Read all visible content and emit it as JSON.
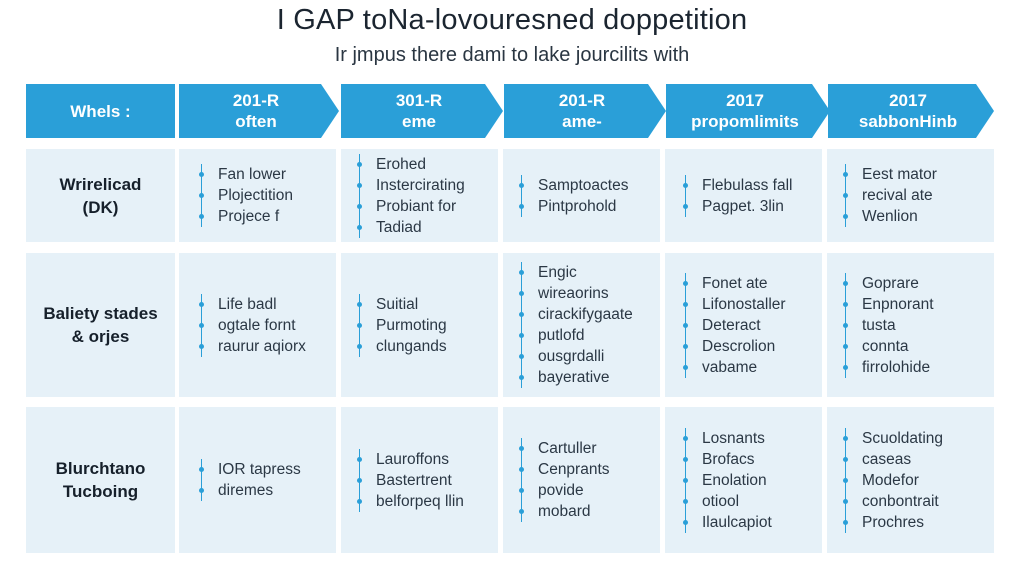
{
  "title": "I GAP toNa-lovouresned doppetition",
  "subtitle": "Ir jmpus there dami to lake jourcilits with",
  "colors": {
    "header": "#2a9fd8",
    "cell": "#e6f1f8",
    "accent": "#2a9fd8"
  },
  "header": {
    "first": "Whels :",
    "columns": [
      {
        "line1": "201-R",
        "line2": "often"
      },
      {
        "line1": "301-R",
        "line2": "eme"
      },
      {
        "line1": "201-R",
        "line2": "ame-"
      },
      {
        "line1": "2017",
        "line2": "propomlimits"
      },
      {
        "line1": "2017",
        "line2": "sabbonHinb"
      }
    ]
  },
  "rows": [
    {
      "label": [
        "Wrirelicad",
        "(DK)"
      ],
      "cells": [
        [
          "Fan lower",
          "Plojectition",
          "Projece f"
        ],
        [
          "Erohed",
          "Instercirating",
          "Probiant for",
          "Tadiad"
        ],
        [
          "Samptoactes",
          "Pintprohold"
        ],
        [
          "Flebulass fall",
          "Pagpet. 3lin"
        ],
        [
          "Eest mator",
          "recival ate",
          "Wenlion"
        ]
      ]
    },
    {
      "label": [
        "Baliety stades",
        "& orjes"
      ],
      "cells": [
        [
          "Life badl",
          "ogtale fornt",
          "raurur aqiorx"
        ],
        [
          "Suitial",
          "Purmoting",
          "clungands"
        ],
        [
          "Engic",
          "wireaorins",
          "cirackifygaate",
          "putlofd",
          "ousgrdalli",
          "bayerative"
        ],
        [
          "Fonet ate",
          "Lifonostaller",
          "Deteract",
          "Descrolion",
          "vabame"
        ],
        [
          "Goprare",
          "Enpnorant",
          "tusta",
          "connta",
          "firrolohide"
        ]
      ]
    },
    {
      "label": [
        "Blurchtano",
        "Tucboing"
      ],
      "cells": [
        [
          "IOR tapress",
          "diremes"
        ],
        [
          "Lauroffons",
          "Bastertrent",
          "belforpeq llin"
        ],
        [
          "Cartuller",
          "Cenprants",
          "povide",
          "mobard"
        ],
        [
          "Losnants",
          "Brofacs",
          "Enolation",
          "otiool",
          "Ilaulcapiot"
        ],
        [
          "Scuoldating",
          "caseas",
          "Modefor",
          "conbontrait",
          "Prochres"
        ]
      ]
    }
  ]
}
